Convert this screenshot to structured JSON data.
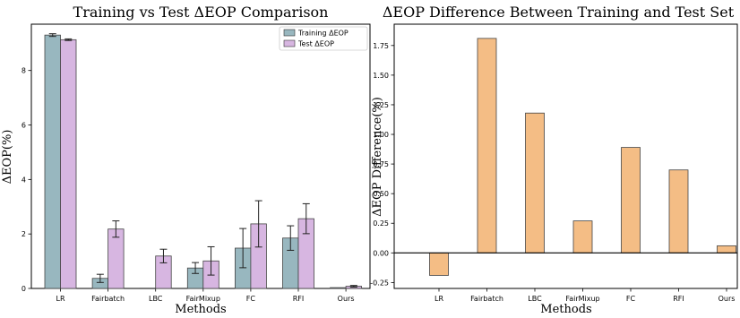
{
  "chart_data": [
    {
      "type": "bar",
      "title": "Training vs Test ΔEOP Comparison",
      "xlabel": "Methods",
      "ylabel": "ΔEOP(%)",
      "categories": [
        "LR",
        "Fairbatch",
        "LBC",
        "FairMixup",
        "FC",
        "RFI",
        "Ours"
      ],
      "ylim": [
        0,
        9.7
      ],
      "yticks": [
        0,
        2,
        4,
        6,
        8
      ],
      "grid": false,
      "legend": "top-right",
      "series": [
        {
          "name": "Training ΔEOP",
          "color": "#98b7bf",
          "values": [
            9.3,
            0.37,
            0.01,
            0.75,
            1.48,
            1.85,
            0.03
          ],
          "errors": [
            0.05,
            0.15,
            0.0,
            0.2,
            0.72,
            0.45,
            0.0
          ]
        },
        {
          "name": "Test ΔEOP",
          "color": "#d7b6e1",
          "values": [
            9.13,
            2.18,
            1.19,
            1.01,
            2.37,
            2.56,
            0.08
          ],
          "errors": [
            0.03,
            0.3,
            0.25,
            0.52,
            0.85,
            0.55,
            0.03
          ]
        }
      ]
    },
    {
      "type": "bar",
      "title": "ΔEOP Difference Between Training and Test Set",
      "xlabel": "Methods",
      "ylabel": "ΔEOP Difference(%)",
      "categories": [
        "LR",
        "Fairbatch",
        "LBC",
        "FairMixup",
        "FC",
        "RFI",
        "Ours"
      ],
      "ylim": [
        -0.3,
        1.93
      ],
      "yticks": [
        "-0.25",
        "0.00",
        "0.25",
        "0.50",
        "0.75",
        "1.00",
        "1.25",
        "1.50",
        "1.75"
      ],
      "grid": false,
      "zero_line": true,
      "series": [
        {
          "color": "#f4bd85",
          "values": [
            -0.19,
            1.81,
            1.18,
            0.27,
            0.89,
            0.7,
            0.06
          ]
        }
      ]
    }
  ]
}
